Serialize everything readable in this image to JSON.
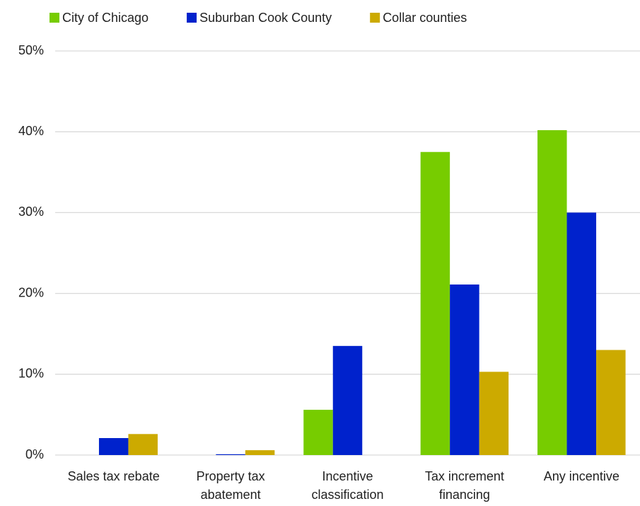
{
  "chart_data": {
    "type": "bar",
    "categories": [
      "Sales tax rebate",
      "Property tax abatement",
      "Incentive classification",
      "Tax increment financing",
      "Any incentive"
    ],
    "series": [
      {
        "name": "City of Chicago",
        "color": "#77cc00",
        "values": [
          0,
          0,
          5.6,
          37.5,
          40.2
        ]
      },
      {
        "name": "Suburban Cook County",
        "color": "#0022cc",
        "values": [
          2.1,
          0.1,
          13.5,
          21.1,
          30.0
        ]
      },
      {
        "name": "Collar counties",
        "color": "#ccaa00",
        "values": [
          2.6,
          0.6,
          0,
          10.3,
          13.0
        ]
      }
    ],
    "ylim": [
      0,
      50
    ],
    "yticks": [
      {
        "value": 0,
        "label": "0%"
      },
      {
        "value": 10,
        "label": "10%"
      },
      {
        "value": 20,
        "label": "20%"
      },
      {
        "value": 30,
        "label": "30%"
      },
      {
        "value": 40,
        "label": "40%"
      },
      {
        "value": 50,
        "label": "50%"
      }
    ],
    "grid": true,
    "legend": "top"
  }
}
